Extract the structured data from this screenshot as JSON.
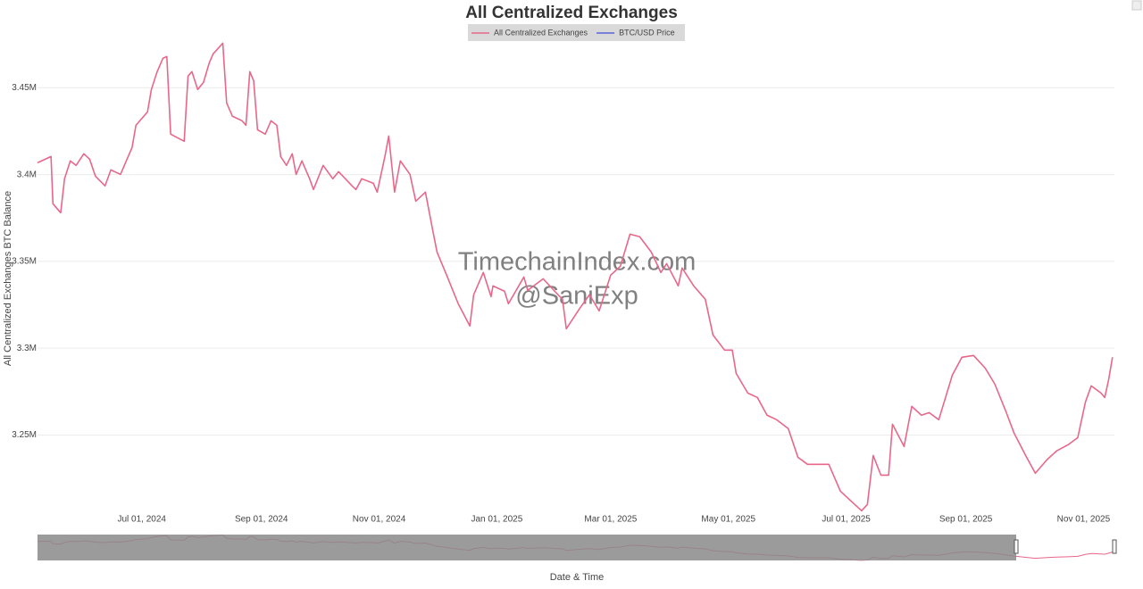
{
  "chart_data": {
    "type": "line",
    "title": "All Centralized Exchanges",
    "y_label": "All Centralized Exchanges BTC Balance",
    "x_label": "Date & Time",
    "watermark": [
      "TimechainIndex.com",
      "@SaniExp"
    ],
    "legend": [
      {
        "name": "All Centralized Exchanges",
        "color": "#e8678a",
        "active": true
      },
      {
        "name": "BTC/USD Price",
        "color": "#5b63d8",
        "active": false
      }
    ],
    "xlim": [
      "2024-05-08",
      "2025-11-17"
    ],
    "xticks": [
      {
        "value": "2024-07-01",
        "label": "Jul 01, 2024"
      },
      {
        "value": "2024-09-01",
        "label": "Sep 01, 2024"
      },
      {
        "value": "2024-11-01",
        "label": "Nov 01, 2024"
      },
      {
        "value": "2025-01-01",
        "label": "Jan 01, 2025"
      },
      {
        "value": "2025-03-01",
        "label": "Mar 01, 2025"
      },
      {
        "value": "2025-05-01",
        "label": "May 01, 2025"
      },
      {
        "value": "2025-07-01",
        "label": "Jul 01, 2025"
      },
      {
        "value": "2025-09-01",
        "label": "Sep 01, 2025"
      },
      {
        "value": "2025-11-01",
        "label": "Nov 01, 2025"
      }
    ],
    "ylim": [
      3205000,
      3480000
    ],
    "yticks": [
      {
        "value": 3250000,
        "label": "3.25M"
      },
      {
        "value": 3300000,
        "label": "3.3M"
      },
      {
        "value": 3350000,
        "label": "3.35M"
      },
      {
        "value": 3400000,
        "label": "3.4M"
      },
      {
        "value": 3450000,
        "label": "3.45M"
      }
    ],
    "grid": true,
    "x": [
      "2024-05-08",
      "2024-05-15",
      "2024-05-16",
      "2024-05-20",
      "2024-05-22",
      "2024-05-25",
      "2024-05-28",
      "2024-06-01",
      "2024-06-04",
      "2024-06-07",
      "2024-06-12",
      "2024-06-15",
      "2024-06-20",
      "2024-06-23",
      "2024-06-26",
      "2024-06-28",
      "2024-07-04",
      "2024-07-06",
      "2024-07-09",
      "2024-07-12",
      "2024-07-14",
      "2024-07-16",
      "2024-07-23",
      "2024-07-25",
      "2024-07-27",
      "2024-07-30",
      "2024-08-02",
      "2024-08-05",
      "2024-08-07",
      "2024-08-12",
      "2024-08-14",
      "2024-08-17",
      "2024-08-22",
      "2024-08-24",
      "2024-08-26",
      "2024-08-28",
      "2024-08-30",
      "2024-09-03",
      "2024-09-06",
      "2024-09-09",
      "2024-09-11",
      "2024-09-14",
      "2024-09-17",
      "2024-09-19",
      "2024-09-22",
      "2024-09-26",
      "2024-09-28",
      "2024-10-03",
      "2024-10-08",
      "2024-10-11",
      "2024-10-18",
      "2024-10-20",
      "2024-10-23",
      "2024-10-29",
      "2024-10-31",
      "2024-11-04",
      "2024-11-06",
      "2024-11-09",
      "2024-11-12",
      "2024-11-17",
      "2024-11-20",
      "2024-11-25",
      "2024-11-29",
      "2024-12-01",
      "2024-12-06",
      "2024-12-12",
      "2024-12-18",
      "2024-12-20",
      "2024-12-25",
      "2024-12-29",
      "2024-12-30",
      "2025-01-05",
      "2025-01-07",
      "2025-01-15",
      "2025-01-17",
      "2025-01-25",
      "2025-01-31",
      "2025-02-04",
      "2025-02-06",
      "2025-02-13",
      "2025-02-18",
      "2025-02-23",
      "2025-03-01",
      "2025-03-06",
      "2025-03-11",
      "2025-03-16",
      "2025-03-22",
      "2025-03-27",
      "2025-03-30",
      "2025-04-05",
      "2025-04-07",
      "2025-04-13",
      "2025-04-19",
      "2025-04-23",
      "2025-04-29",
      "2025-05-03",
      "2025-05-05",
      "2025-05-11",
      "2025-05-16",
      "2025-05-21",
      "2025-05-26",
      "2025-06-01",
      "2025-06-06",
      "2025-06-11",
      "2025-06-17",
      "2025-06-22",
      "2025-06-28",
      "2025-07-03",
      "2025-07-09",
      "2025-07-12",
      "2025-07-15",
      "2025-07-19",
      "2025-07-23",
      "2025-07-25",
      "2025-07-31",
      "2025-08-04",
      "2025-08-09",
      "2025-08-13",
      "2025-08-18",
      "2025-08-25",
      "2025-08-30",
      "2025-09-05",
      "2025-09-11",
      "2025-09-16",
      "2025-09-22",
      "2025-09-26",
      "2025-10-02",
      "2025-10-07",
      "2025-10-13",
      "2025-10-18",
      "2025-10-24",
      "2025-10-29",
      "2025-11-02",
      "2025-11-05",
      "2025-11-10",
      "2025-11-12",
      "2025-11-14",
      "2025-11-16"
    ],
    "series": [
      {
        "name": "All Centralized Exchanges",
        "color": "#e8678a",
        "values": [
          3406800,
          3410400,
          3383200,
          3378000,
          3397600,
          3407900,
          3405300,
          3412000,
          3408900,
          3399100,
          3393500,
          3402700,
          3400100,
          3407900,
          3415600,
          3428400,
          3436100,
          3449000,
          3459300,
          3467000,
          3468000,
          3423300,
          3419200,
          3456700,
          3459300,
          3449000,
          3453100,
          3464400,
          3469500,
          3475700,
          3441300,
          3433600,
          3431000,
          3428400,
          3459300,
          3454100,
          3425800,
          3423300,
          3431000,
          3428400,
          3410400,
          3405300,
          3412000,
          3400100,
          3407900,
          3397600,
          3391400,
          3405300,
          3397600,
          3401700,
          3393500,
          3391400,
          3397600,
          3395000,
          3389900,
          3410400,
          3422200,
          3389900,
          3407900,
          3400100,
          3384700,
          3389900,
          3366700,
          3355400,
          3342100,
          3325600,
          3312800,
          3330800,
          3343600,
          3329700,
          3335900,
          3332800,
          3325600,
          3341000,
          3333300,
          3340000,
          3332800,
          3328200,
          3311200,
          3323000,
          3330800,
          3321500,
          3342100,
          3347200,
          3365700,
          3364200,
          3355400,
          3343600,
          3348700,
          3335900,
          3346200,
          3335900,
          3328200,
          3307600,
          3298900,
          3298900,
          3285500,
          3274200,
          3271600,
          3261400,
          3258800,
          3253700,
          3237200,
          3233100,
          3233100,
          3233100,
          3217700,
          3212500,
          3206400,
          3210000,
          3238200,
          3226900,
          3226900,
          3256200,
          3243400,
          3266500,
          3261400,
          3262900,
          3258800,
          3284500,
          3294800,
          3295800,
          3288600,
          3279400,
          3262900,
          3251100,
          3238200,
          3228000,
          3235700,
          3240800,
          3244400,
          3248500,
          3269100,
          3278300,
          3274200,
          3271600,
          3281900,
          3294800
        ]
      }
    ]
  }
}
